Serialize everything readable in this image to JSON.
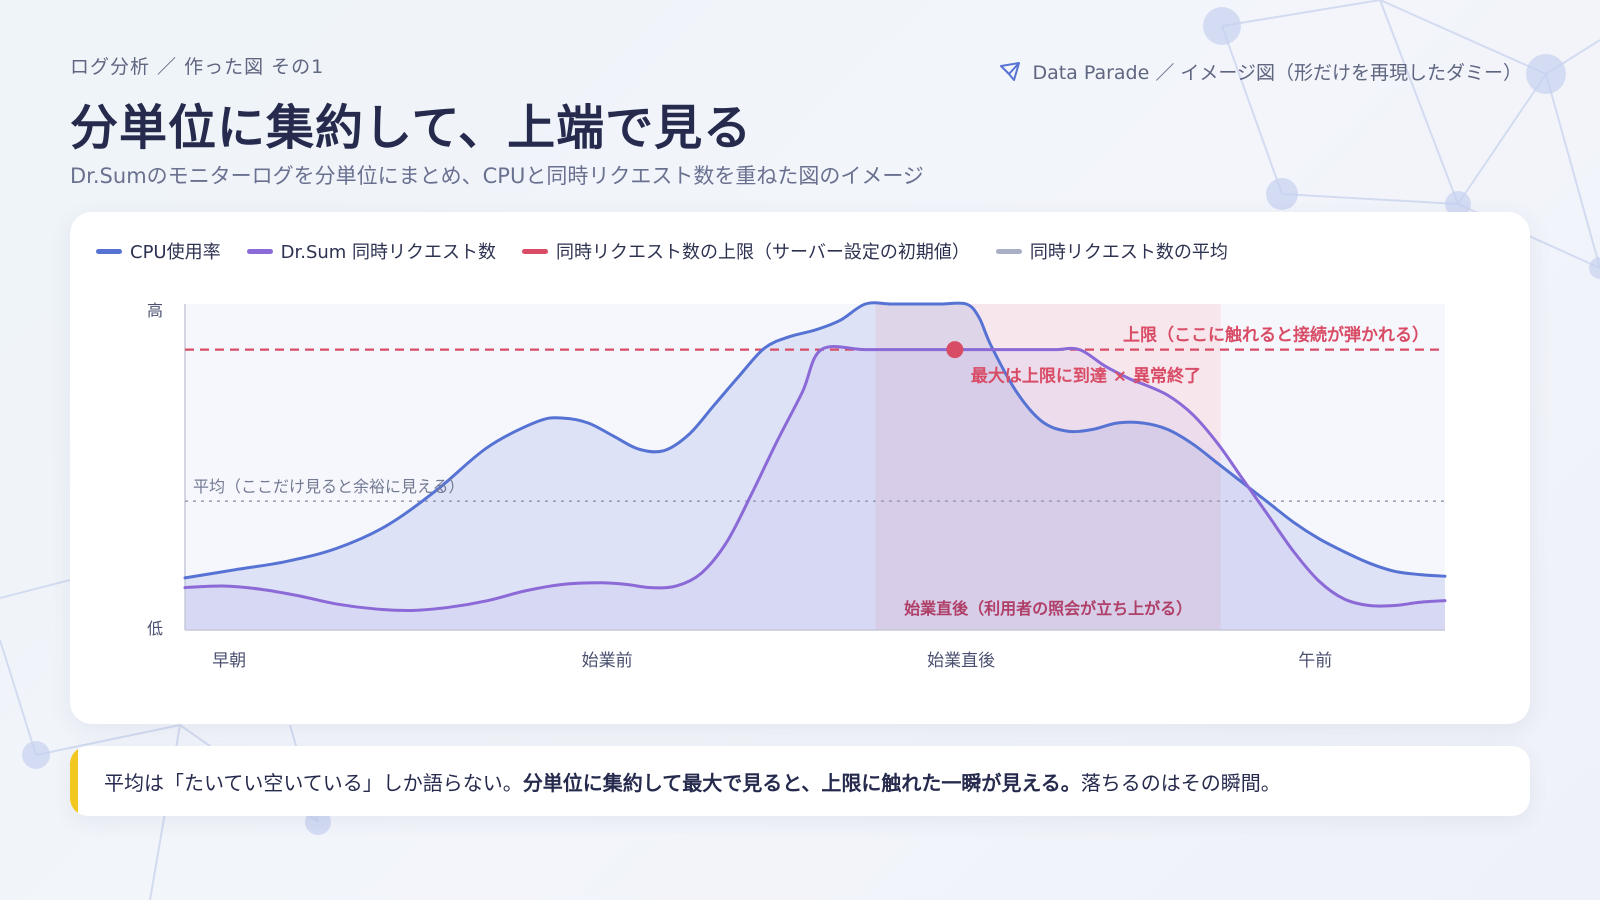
{
  "header": {
    "breadcrumb": "ログ分析 ／ 作った図 その1",
    "brand": "Data Parade ／ イメージ図（形だけを再現したダミー）",
    "title": "分単位に集約して、上端で見る",
    "subtitle": "Dr.Sumのモニターログを分単位にまとめ、CPUと同時リクエスト数を重ねた図のイメージ"
  },
  "colors": {
    "cpu": "#5673d4",
    "requests": "#8b69d6",
    "limit": "#d94c66",
    "average": "#a9afc4",
    "highlight": "#f8e3ea",
    "note_bar": "#f2c71f"
  },
  "legend": [
    {
      "label": "CPU使用率",
      "color": "#5673d4"
    },
    {
      "label": "Dr.Sum 同時リクエスト数",
      "color": "#8b69d6"
    },
    {
      "label": "同時リクエスト数の上限（サーバー設定の初期値）",
      "color": "#d94c66"
    },
    {
      "label": "同時リクエスト数の平均",
      "color": "#a9afc4"
    }
  ],
  "chart_data": {
    "type": "line",
    "y_tick_labels": {
      "high": "高",
      "low": "低"
    },
    "ylim": [
      0,
      100
    ],
    "xlim": [
      0,
      100
    ],
    "x_categories": [
      {
        "label": "早朝",
        "x": 3.5
      },
      {
        "label": "始業前",
        "x": 33.5
      },
      {
        "label": "始業直後",
        "x": 61.6
      },
      {
        "label": "午前",
        "x": 89.7
      }
    ],
    "series": [
      {
        "name": "CPU使用率",
        "x": [
          0,
          4,
          8,
          12,
          16,
          20,
          24,
          28,
          30,
          32,
          34,
          36,
          38,
          40,
          42,
          44,
          46,
          48,
          50,
          52,
          54,
          56,
          58,
          60,
          62,
          63,
          64,
          66,
          68,
          70,
          72,
          74,
          76,
          78,
          80,
          82,
          84,
          86,
          88,
          90,
          92,
          94,
          96,
          98,
          100
        ],
        "y": [
          16,
          18.5,
          21,
          25,
          32,
          43,
          56,
          64,
          65,
          63.5,
          59.5,
          55.5,
          55,
          60,
          69,
          78,
          86.5,
          90,
          92,
          95,
          100,
          100,
          100,
          100,
          100,
          96,
          87,
          73,
          64,
          61,
          61.5,
          63.5,
          63.5,
          61.5,
          57,
          51,
          45,
          39,
          33,
          28,
          24,
          20.5,
          18,
          17,
          16.5
        ]
      },
      {
        "name": "Dr.Sum 同時リクエスト数",
        "x": [
          0,
          3,
          6,
          9,
          12,
          15,
          18,
          21,
          24,
          27,
          30,
          33,
          35,
          37,
          39,
          41,
          43,
          45,
          47,
          49,
          50.5,
          54,
          58,
          60,
          63,
          66,
          69,
          71,
          73,
          75,
          76,
          78,
          80,
          82,
          84,
          86,
          88,
          90,
          92,
          94,
          96,
          98,
          100
        ],
        "y": [
          13,
          13.5,
          12.5,
          10.5,
          8,
          6.5,
          6,
          7,
          9,
          12,
          14,
          14.5,
          14,
          13,
          13.5,
          17.5,
          27,
          42,
          58,
          73,
          86,
          86,
          86,
          86,
          86,
          86,
          86,
          86,
          81,
          77,
          75.5,
          72,
          66,
          57,
          46,
          35,
          24,
          15,
          9.5,
          7.5,
          7.5,
          8.5,
          9
        ]
      }
    ],
    "limit": {
      "y": 86,
      "label": "上限（ここに触れると接続が弾かれる）"
    },
    "average": {
      "y": 39.5,
      "label": "平均（ここだけ見ると余裕に見える）"
    },
    "highlight_region": {
      "x0": 54.8,
      "x1": 82.2,
      "label": "始業直後（利用者の照会が立ち上がる）"
    },
    "marker": {
      "x": 61.1,
      "y": 86,
      "label": "最大は上限に到達 × 異常終了"
    }
  },
  "note": {
    "text1": "平均は「たいてい空いている」しか語らない。",
    "text2": "分単位に集約して最大で見ると、上限に触れた一瞬が見える。",
    "text3": "落ちるのはその瞬間。"
  }
}
